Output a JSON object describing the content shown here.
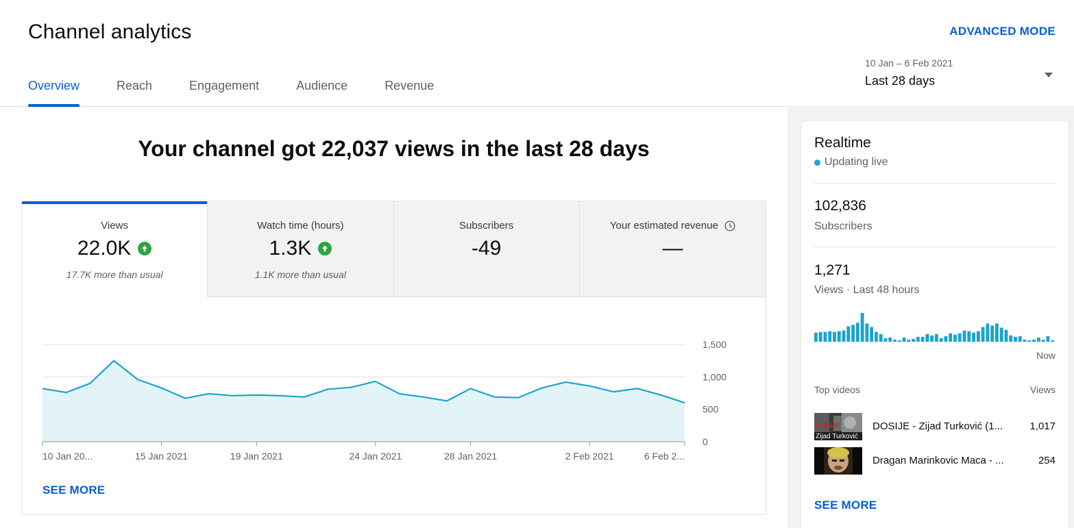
{
  "header": {
    "title": "Channel analytics",
    "advanced_mode": "ADVANCED MODE",
    "tabs": [
      {
        "label": "Overview",
        "active": true
      },
      {
        "label": "Reach",
        "active": false
      },
      {
        "label": "Engagement",
        "active": false
      },
      {
        "label": "Audience",
        "active": false
      },
      {
        "label": "Revenue",
        "active": false
      }
    ],
    "date_range": "10 Jan – 6 Feb 2021",
    "date_label": "Last 28 days"
  },
  "overview": {
    "headline": "Your channel got 22,037 views in the last 28 days",
    "metrics": [
      {
        "label": "Views",
        "value": "22.0K",
        "trend": "up",
        "sub": "17.7K more than usual"
      },
      {
        "label": "Watch time (hours)",
        "value": "1.3K",
        "trend": "up",
        "sub": "1.1K more than usual"
      },
      {
        "label": "Subscribers",
        "value": "-49",
        "trend": "",
        "sub": ""
      },
      {
        "label": "Your estimated revenue",
        "value": "—",
        "trend": "",
        "sub": ""
      }
    ],
    "see_more": "SEE MORE"
  },
  "chart_data": {
    "type": "area",
    "series": [
      {
        "values": [
          820,
          760,
          900,
          1250,
          960,
          830,
          670,
          740,
          710,
          720,
          710,
          690,
          810,
          840,
          930,
          740,
          690,
          630,
          820,
          690,
          680,
          830,
          920,
          860,
          770,
          820,
          720,
          600
        ]
      }
    ],
    "x_ticks": [
      "10 Jan 20...",
      "15 Jan 2021",
      "19 Jan 2021",
      "24 Jan 2021",
      "28 Jan 2021",
      "2 Feb 2021",
      "6 Feb 2..."
    ],
    "y_ticks": [
      "0",
      "500",
      "1,000",
      "1,500"
    ],
    "ylim": [
      0,
      1500
    ],
    "grid": true,
    "color": "#1ba4cd"
  },
  "realtime": {
    "title": "Realtime",
    "status": "Updating live",
    "subscribers_value": "102,836",
    "subscribers_label": "Subscribers",
    "views_value": "1,271",
    "views_label": "Views · Last 48 hours",
    "bars": [
      26,
      28,
      28,
      30,
      28,
      30,
      32,
      44,
      48,
      54,
      82,
      52,
      42,
      28,
      22,
      10,
      12,
      6,
      4,
      12,
      6,
      8,
      14,
      14,
      22,
      18,
      22,
      10,
      16,
      24,
      20,
      24,
      32,
      30,
      26,
      30,
      42,
      52,
      46,
      52,
      40,
      34,
      18,
      14,
      16,
      6,
      4,
      6,
      12,
      6,
      16,
      4
    ],
    "now_label": "Now",
    "top_videos_label": "Top videos",
    "top_videos_views_label": "Views",
    "videos": [
      {
        "title": "DOSIJE - Zijad Turković (1...",
        "views": "1,017",
        "thumb_text": "Zijad Turković",
        "thumb_tag": "DOSIJE"
      },
      {
        "title": "Dragan Marinkovic Maca - ...",
        "views": "254"
      }
    ],
    "see_more": "SEE MORE",
    "accent": "#1ba4cd"
  }
}
